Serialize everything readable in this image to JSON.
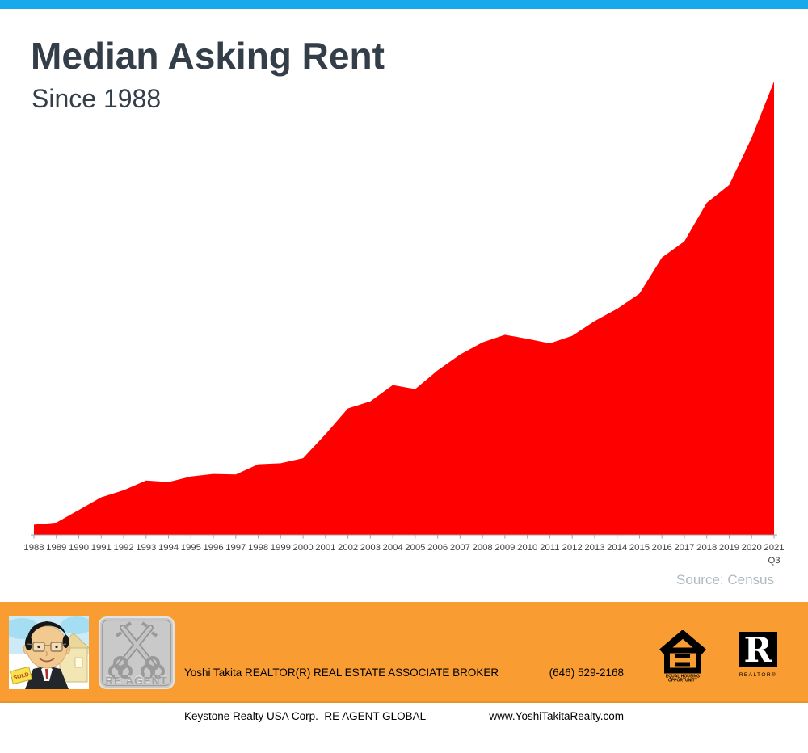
{
  "header": {
    "title": "Median Asking Rent",
    "subtitle": "Since 1988"
  },
  "source": {
    "label": "Source: Census"
  },
  "chart_data": {
    "type": "area",
    "title": "Median Asking Rent Since 1988",
    "categories": [
      "1988",
      "1989",
      "1990",
      "1991",
      "1992",
      "1993",
      "1994",
      "1995",
      "1996",
      "1997",
      "1998",
      "1999",
      "2000",
      "2001",
      "2002",
      "2003",
      "2004",
      "2005",
      "2006",
      "2007",
      "2008",
      "2009",
      "2010",
      "2011",
      "2012",
      "2013",
      "2014",
      "2015",
      "2016",
      "2017",
      "2018",
      "2019",
      "2020",
      "2021"
    ],
    "values": [
      330,
      334,
      359,
      384,
      398,
      417,
      414,
      425,
      430,
      429,
      449,
      451,
      461,
      508,
      559,
      573,
      605,
      597,
      634,
      665,
      689,
      704,
      696,
      687,
      702,
      731,
      755,
      785,
      856,
      888,
      964,
      999,
      1092,
      1203
    ],
    "series_name": "Median asking rent (USD)",
    "last_tick_note": "Q3",
    "xlabel": "",
    "ylabel": "",
    "ylim": [
      310,
      1220
    ],
    "grid": false,
    "legend": "none",
    "y_axis_visible": false
  },
  "colors": {
    "top_bar": "#18a9ec",
    "area": "#ff0000",
    "footer_bg": "#f99d32",
    "title_text": "#333e48",
    "source_text": "#aeb9c1",
    "axis": "#a0a0a0",
    "tick_label": "#3f3f3f"
  },
  "footer": {
    "agent_line1": "Yoshi Takita REALTOR(R) REAL ESTATE ASSOCIATE BROKER",
    "agent_line2": "Keystone Realty USA Corp.  RE AGENT GLOBAL",
    "phone": "(646) 529-2168",
    "website": "www.YoshiTakitaRealty.com",
    "badge_label": "RE AGENT",
    "sold_sign": "SOLD",
    "eho_line1": "EQUAL HOUSING",
    "eho_line2": "OPPORTUNITY",
    "realtor_label": "REALTOR®"
  }
}
